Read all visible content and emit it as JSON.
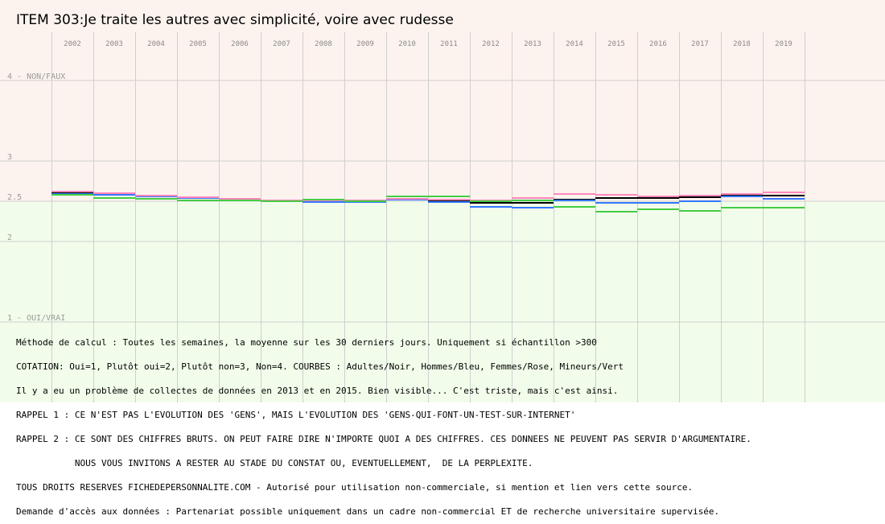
{
  "chart_data": {
    "type": "line",
    "title": "ITEM 303:Je traite les autres avec  simplicité, voire avec rudesse",
    "x": [
      "2002",
      "2003",
      "2004",
      "2005",
      "2006",
      "2007",
      "2008",
      "2009",
      "2010",
      "2011",
      "2012",
      "2013",
      "2014",
      "2015",
      "2016",
      "2017",
      "2018",
      "2019"
    ],
    "ylim": [
      1,
      4
    ],
    "y_tick_labels": [
      {
        "value": 4,
        "label": "4 - NON/FAUX"
      },
      {
        "value": 3,
        "label": "3"
      },
      {
        "value": 2.5,
        "label": "2.5"
      },
      {
        "value": 2,
        "label": "2"
      },
      {
        "value": 1,
        "label": "1 - OUI/VRAI"
      }
    ],
    "grid": true,
    "background": {
      "upper": "#fdf3ee",
      "lower": "#f1fdea"
    },
    "series": [
      {
        "name": "Adultes",
        "color": "#000000",
        "values": [
          2.61,
          2.59,
          2.57,
          2.55,
          2.53,
          2.51,
          2.51,
          2.51,
          2.53,
          2.51,
          2.48,
          2.48,
          2.52,
          2.54,
          2.54,
          2.55,
          2.58,
          2.57
        ]
      },
      {
        "name": "Hommes",
        "color": "#3377ff",
        "values": [
          2.59,
          2.58,
          2.56,
          2.54,
          2.52,
          2.5,
          2.49,
          2.49,
          2.52,
          2.49,
          2.43,
          2.42,
          2.51,
          2.48,
          2.48,
          2.5,
          2.56,
          2.53
        ]
      },
      {
        "name": "Femmes",
        "color": "#ff88bb",
        "values": [
          2.62,
          2.6,
          2.57,
          2.55,
          2.53,
          2.51,
          2.51,
          2.51,
          2.53,
          2.52,
          2.51,
          2.54,
          2.59,
          2.58,
          2.56,
          2.57,
          2.59,
          2.61
        ]
      },
      {
        "name": "Mineurs",
        "color": "#44cc44",
        "values": [
          2.58,
          2.54,
          2.53,
          2.51,
          2.51,
          2.5,
          2.52,
          2.5,
          2.56,
          2.56,
          2.5,
          2.51,
          2.43,
          2.37,
          2.4,
          2.38,
          2.42,
          2.42
        ]
      }
    ]
  },
  "notes": [
    "Méthode de calcul : Toutes les semaines, la moyenne sur les 30 derniers jours. Uniquement si échantillon >300",
    "COTATION: Oui=1, Plutôt oui=2, Plutôt non=3, Non=4. COURBES : Adultes/Noir, Hommes/Bleu, Femmes/Rose, Mineurs/Vert",
    "Il y a eu un problème de collectes de données en 2013 et en 2015. Bien visible... C'est triste, mais c'est ainsi.",
    "RAPPEL 1 : CE N'EST PAS L'EVOLUTION DES 'GENS', MAIS L'EVOLUTION DES 'GENS-QUI-FONT-UN-TEST-SUR-INTERNET'",
    "RAPPEL 2 : CE SONT DES CHIFFRES BRUTS. ON PEUT FAIRE DIRE N'IMPORTE QUOI A DES CHIFFRES. CES DONNEES NE PEUVENT PAS SERVIR D'ARGUMENTAIRE.",
    "           NOUS VOUS INVITONS A RESTER AU STADE DU CONSTAT OU, EVENTUELLEMENT,  DE LA PERPLEXITE.",
    "TOUS DROITS RESERVES FICHEDEPERSONNALITE.COM - Autorisé pour utilisation non-commerciale, si mention et lien vers cette source.",
    "Demande d'accès aux données : Partenariat possible uniquement dans un cadre non-commercial ET de recherche universitaire supervisée."
  ]
}
